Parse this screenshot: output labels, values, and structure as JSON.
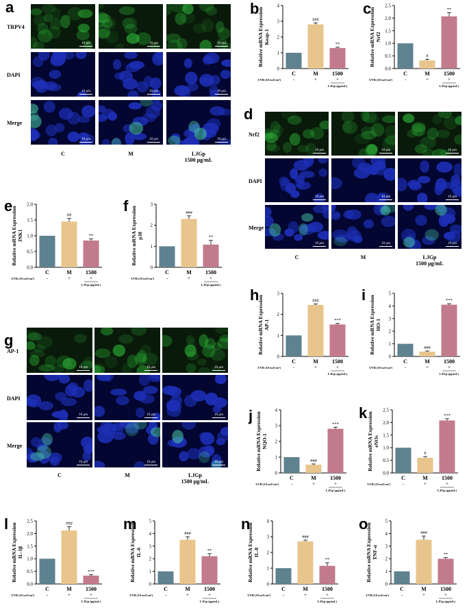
{
  "colors": {
    "control": "#5f8291",
    "model": "#e8c58c",
    "treat": "#c27b8c",
    "green": "#2fc43c",
    "blue": "#1d2fb6"
  },
  "panels": [
    "a",
    "b",
    "c",
    "d",
    "e",
    "f",
    "g",
    "h",
    "i",
    "j",
    "k",
    "l",
    "m",
    "n",
    "o"
  ],
  "micrographs": [
    {
      "panel": "a",
      "rows": [
        "TRPV4",
        "DAPI",
        "Merge"
      ],
      "cols": [
        "C",
        "M",
        "LJGp\n1500 μg/mL"
      ],
      "scalebar": "10 μm"
    },
    {
      "panel": "d",
      "rows": [
        "Nrf2",
        "DAPI",
        "Merge"
      ],
      "cols": [
        "C",
        "M",
        "LJGp\n1500 μg/mL"
      ],
      "scalebar": "10 μm"
    },
    {
      "panel": "g",
      "rows": [
        "AP-1",
        "DAPI",
        "Merge"
      ],
      "cols": [
        "C",
        "M",
        "LJGp\n1500 μg/mL"
      ],
      "scalebar": "10 μm"
    }
  ],
  "common": {
    "ylabel": "Relative mRNA Expression",
    "categories": [
      "C",
      "M",
      "1500"
    ],
    "uvb_label": "UVB (10 mJ/cm²)",
    "uvb_signs": [
      "-",
      "+",
      "+"
    ],
    "ljgp_label": "LJGp (μg/mL)"
  },
  "chart_data": [
    {
      "panel": "b",
      "type": "bar",
      "gene": "Keap-1",
      "categories": [
        "C",
        "M",
        "1500"
      ],
      "values": [
        1.0,
        2.8,
        1.3
      ],
      "errors": [
        0,
        0.1,
        0.05
      ],
      "ylim": [
        0,
        4
      ],
      "yticks": [
        0,
        1,
        2,
        3,
        4
      ],
      "yticklabels": [
        "0",
        "1",
        "2",
        "3",
        "4"
      ],
      "sig": [
        "",
        "###",
        "**"
      ]
    },
    {
      "panel": "c",
      "type": "bar",
      "gene": "Nrf2",
      "categories": [
        "C",
        "M",
        "1500"
      ],
      "values": [
        1.0,
        0.32,
        2.07
      ],
      "errors": [
        0,
        0.05,
        0.15
      ],
      "ylim": [
        0,
        2.5
      ],
      "yticks": [
        0,
        0.5,
        1,
        1.5,
        2,
        2.5
      ],
      "yticklabels": [
        "0.0",
        "0.5",
        "1.0",
        "1.5",
        "2.0",
        "2.5"
      ],
      "sig": [
        "",
        "#",
        "**"
      ]
    },
    {
      "panel": "e",
      "type": "bar",
      "gene": "JNK1",
      "categories": [
        "C",
        "M",
        "1500"
      ],
      "values": [
        1.0,
        1.45,
        0.85
      ],
      "errors": [
        0,
        0.1,
        0.05
      ],
      "ylim": [
        0,
        2
      ],
      "yticks": [
        0,
        0.5,
        1,
        1.5,
        2
      ],
      "yticklabels": [
        "0.0",
        "0.5",
        "1.0",
        "1.5",
        "2.0"
      ],
      "sig": [
        "",
        "##",
        "**"
      ]
    },
    {
      "panel": "f",
      "type": "bar",
      "gene": "p38",
      "categories": [
        "C",
        "M",
        "1500"
      ],
      "values": [
        1.0,
        2.3,
        1.08
      ],
      "errors": [
        0,
        0.15,
        0.2
      ],
      "ylim": [
        0,
        3
      ],
      "yticks": [
        0,
        1,
        2,
        3
      ],
      "yticklabels": [
        "0",
        "1",
        "2",
        "3"
      ],
      "sig": [
        "",
        "###",
        "**"
      ]
    },
    {
      "panel": "h",
      "type": "bar",
      "gene": "AP-1",
      "categories": [
        "C",
        "M",
        "1500"
      ],
      "values": [
        1.0,
        2.45,
        1.52
      ],
      "errors": [
        0,
        0.05,
        0.05
      ],
      "ylim": [
        0,
        3
      ],
      "yticks": [
        0,
        1,
        2,
        3
      ],
      "yticklabels": [
        "0",
        "1",
        "2",
        "3"
      ],
      "sig": [
        "",
        "###",
        "***"
      ]
    },
    {
      "panel": "i",
      "type": "bar",
      "gene": "HO-1",
      "categories": [
        "C",
        "M",
        "1500"
      ],
      "values": [
        1.0,
        0.38,
        4.1
      ],
      "errors": [
        0,
        0.05,
        0.08
      ],
      "ylim": [
        0,
        5
      ],
      "yticks": [
        0,
        1,
        2,
        3,
        4,
        5
      ],
      "yticklabels": [
        "0",
        "1",
        "2",
        "3",
        "4",
        "5"
      ],
      "sig": [
        "",
        "###",
        "***"
      ]
    },
    {
      "panel": "j",
      "type": "bar",
      "gene": "NQO-1",
      "categories": [
        "C",
        "M",
        "1500"
      ],
      "values": [
        1.0,
        0.52,
        2.8
      ],
      "errors": [
        0,
        0.05,
        0.1
      ],
      "ylim": [
        0,
        4
      ],
      "yticks": [
        0,
        1,
        2,
        3,
        4
      ],
      "yticklabels": [
        "0",
        "1",
        "2",
        "3",
        "4"
      ],
      "sig": [
        "",
        "###",
        "***"
      ]
    },
    {
      "panel": "k",
      "type": "bar",
      "gene": "eNOs",
      "categories": [
        "C",
        "M",
        "1500"
      ],
      "values": [
        1.0,
        0.6,
        2.08
      ],
      "errors": [
        0,
        0.05,
        0.07
      ],
      "ylim": [
        0,
        2.5
      ],
      "yticks": [
        0,
        0.5,
        1,
        1.5,
        2,
        2.5
      ],
      "yticklabels": [
        "0.0",
        "0.5",
        "1.0",
        "1.5",
        "2.0",
        "2.5"
      ],
      "sig": [
        "",
        "#",
        "***"
      ]
    },
    {
      "panel": "l",
      "type": "bar",
      "gene": "IL-1β",
      "categories": [
        "C",
        "M",
        "1500"
      ],
      "values": [
        1.0,
        2.12,
        0.33
      ],
      "errors": [
        0,
        0.15,
        0.04
      ],
      "ylim": [
        0,
        2.5
      ],
      "yticks": [
        0,
        0.5,
        1,
        1.5,
        2,
        2.5
      ],
      "yticklabels": [
        "0.0",
        "0.5",
        "1.0",
        "1.5",
        "2.0",
        "2.5"
      ],
      "sig": [
        "",
        "###",
        "***"
      ]
    },
    {
      "panel": "m",
      "type": "bar",
      "gene": "IL-6",
      "categories": [
        "C",
        "M",
        "1500"
      ],
      "values": [
        1.0,
        3.5,
        2.2
      ],
      "errors": [
        0,
        0.25,
        0.2
      ],
      "ylim": [
        0,
        5
      ],
      "yticks": [
        0,
        1,
        2,
        3,
        4,
        5
      ],
      "yticklabels": [
        "0",
        "1",
        "2",
        "3",
        "4",
        "5"
      ],
      "sig": [
        "",
        "###",
        "**"
      ]
    },
    {
      "panel": "n",
      "type": "bar",
      "gene": "IL-8",
      "categories": [
        "C",
        "M",
        "1500"
      ],
      "values": [
        1.0,
        2.7,
        1.15
      ],
      "errors": [
        0,
        0.08,
        0.2
      ],
      "ylim": [
        0,
        4
      ],
      "yticks": [
        0,
        1,
        2,
        3,
        4
      ],
      "yticklabels": [
        "0",
        "1",
        "2",
        "3",
        "4"
      ],
      "sig": [
        "",
        "###",
        "**"
      ]
    },
    {
      "panel": "o",
      "type": "bar",
      "gene": "TNF-α",
      "categories": [
        "C",
        "M",
        "1500"
      ],
      "values": [
        1.0,
        3.5,
        2.0
      ],
      "errors": [
        0,
        0.3,
        0.1
      ],
      "ylim": [
        0,
        5
      ],
      "yticks": [
        0,
        1,
        2,
        3,
        4,
        5
      ],
      "yticklabels": [
        "0",
        "1",
        "2",
        "3",
        "4",
        "5"
      ],
      "sig": [
        "",
        "###",
        "**"
      ]
    }
  ]
}
